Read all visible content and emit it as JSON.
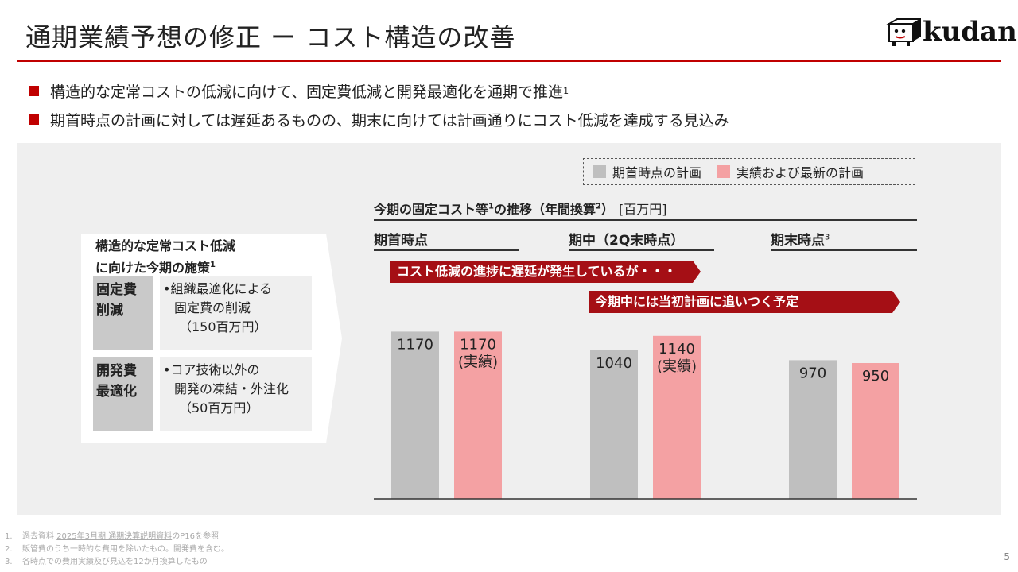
{
  "header": {
    "title": "通期業績予想の修正 ー コスト構造の改善",
    "logo_text": "kudan"
  },
  "bullets": [
    {
      "text": "構造的な定常コストの低減に向けて、固定費低減と開発最適化を通期で推進",
      "sup": "1"
    },
    {
      "text": "期首時点の計画に対しては遅延あるものの、期末に向けては計画通りにコスト低減を達成する見込み",
      "sup": ""
    }
  ],
  "measures": {
    "title_line1": "構造的な定常コスト低減",
    "title_line2": "に向けた今期の施策",
    "title_sup": "1",
    "items": [
      {
        "tag1": "固定費",
        "tag2": "削減",
        "line1": "•組織最適化による",
        "line2": "固定費の削減",
        "line3": "（150百万円）"
      },
      {
        "tag1": "開発費",
        "tag2": "最適化",
        "line1": "•コア技術以外の",
        "line2": "開発の凍結・外注化",
        "line3": "（50百万円）"
      }
    ]
  },
  "banners": {
    "first": "コスト低減の進捗に遅延が発生しているが・・・",
    "second": "今期中には当初計画に追いつく予定"
  },
  "colors": {
    "accent": "#c00000",
    "banner": "#a50f15",
    "plan": "#bfbfbf",
    "actual": "#f4a1a3"
  },
  "chart_data": {
    "type": "bar",
    "title": "今期の固定コスト等",
    "title_sup": "1",
    "title_suffix": "の推移（年間換算",
    "title_suffix_sup": "2",
    "title_close": "）",
    "unit": "[百万円]",
    "categories": [
      "期首時点",
      "期中（2Q末時点）",
      "期末時点"
    ],
    "category_sups": [
      "",
      "",
      "3"
    ],
    "ylim": [
      0,
      1300
    ],
    "legend_position": "top-right",
    "series": [
      {
        "name": "期首時点の計画",
        "color": "#bfbfbf",
        "values": [
          1170,
          1040,
          970
        ],
        "labels": [
          "1170",
          "1040",
          "970"
        ],
        "sublabels": [
          "",
          "",
          ""
        ]
      },
      {
        "name": "実績および最新の計画",
        "color": "#f4a1a3",
        "values": [
          1170,
          1140,
          950
        ],
        "labels": [
          "1170",
          "1140",
          "950"
        ],
        "sublabels": [
          "(実績)",
          "(実績)",
          ""
        ]
      }
    ]
  },
  "footnotes": [
    {
      "num": "1.",
      "pre": "過去資料 ",
      "link": "2025年3月期 通期決算説明資料",
      "post": "のP16を参照"
    },
    {
      "num": "2.",
      "pre": "販管費のうち一時的な費用を除いたもの。開発費を含む。",
      "link": "",
      "post": ""
    },
    {
      "num": "3.",
      "pre": "各時点での費用実績及び見込を12か月換算したもの",
      "link": "",
      "post": ""
    }
  ],
  "page_number": "5"
}
